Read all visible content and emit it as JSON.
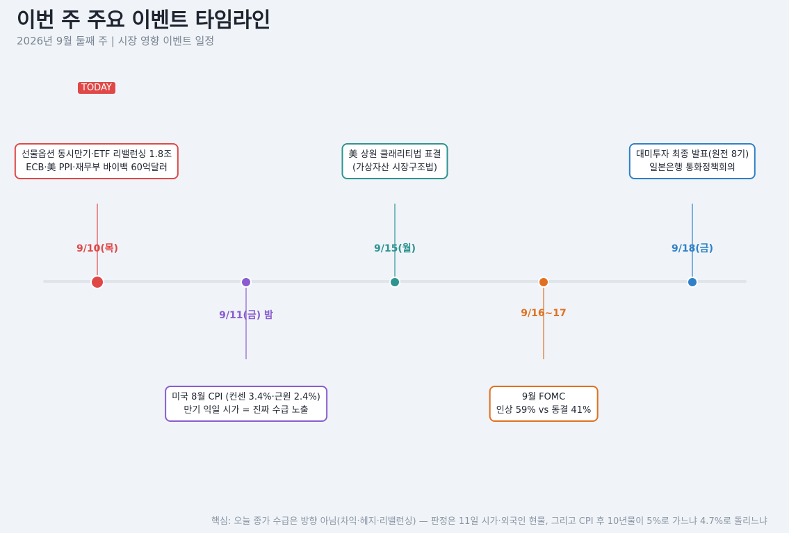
{
  "header": {
    "title": "이번 주 주요 이벤트 타임라인",
    "subtitle": "2026년 9월 둘째 주  |  시장 영향 이벤트 일정"
  },
  "today_label": "TODAY",
  "colors": {
    "background": "#f0f4f8",
    "axis": "#e0e5ec",
    "red": "#e04848",
    "purple": "#8a5cd0",
    "teal": "#2e9490",
    "orange": "#e07020",
    "blue": "#2f80c8"
  },
  "events": [
    {
      "date": "9/10(목)",
      "line1": "선물옵션 동시만기·ETF 리밸런싱 1.8조",
      "line2": "ECB·美 PPI·재무부 바이백 60억달러",
      "color": "#e04848",
      "side": "above",
      "is_today": true
    },
    {
      "date": "9/11(금) 밤",
      "line1": "미국 8월 CPI (컨센 3.4%·근원 2.4%)",
      "line2": "만기 익일 시가 = 진짜 수급 노출",
      "color": "#8a5cd0",
      "side": "below",
      "is_today": false
    },
    {
      "date": "9/15(월)",
      "line1": "美 상원 클래리티법 표결",
      "line2": "(가상자산 시장구조법)",
      "color": "#2e9490",
      "side": "above",
      "is_today": false
    },
    {
      "date": "9/16~17",
      "line1": "9월 FOMC",
      "line2": "인상 59% vs 동결 41%",
      "color": "#e07020",
      "side": "below",
      "is_today": false
    },
    {
      "date": "9/18(금)",
      "line1": "대미투자 최종 발표(원전 8기)",
      "line2": "일본은행 통화정책회의",
      "color": "#2f80c8",
      "side": "above",
      "is_today": false
    }
  ],
  "footer": "핵심: 오늘 종가 수급은 방향 아님(차익·헤지·리밸런싱) — 판정은 11일 시가·외국인 현물, 그리고 CPI 후 10년물이 5%로 가느냐 4.7%로 돌리느냐"
}
